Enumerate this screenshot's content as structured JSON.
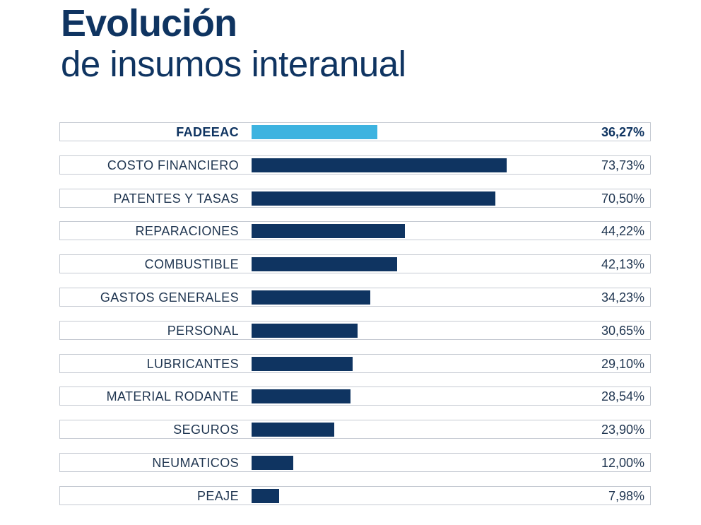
{
  "title": {
    "line1": "Evolución",
    "line2": "de insumos interanual"
  },
  "colors": {
    "highlight_bar": "#3db3e0",
    "bar": "#0f3461",
    "text": "#1f3550"
  },
  "chart_data": {
    "type": "bar",
    "orientation": "horizontal",
    "title": "Evolución de insumos interanual",
    "categories": [
      "FADEEAC",
      "COSTO FINANCIERO",
      "PATENTES Y TASAS",
      "REPARACIONES",
      "COMBUSTIBLE",
      "GASTOS GENERALES",
      "PERSONAL",
      "LUBRICANTES",
      "MATERIAL RODANTE",
      "SEGUROS",
      "NEUMATICOS",
      "PEAJE"
    ],
    "values": [
      36.27,
      73.73,
      70.5,
      44.22,
      42.13,
      34.23,
      30.65,
      29.1,
      28.54,
      23.9,
      12.0,
      7.98
    ],
    "value_labels": [
      "36,27%",
      "73,73%",
      "70,50%",
      "44,22%",
      "42,13%",
      "34,23%",
      "30,65%",
      "29,10%",
      "28,54%",
      "23,90%",
      "12,00%",
      "7,98%"
    ],
    "highlight": "FADEEAC",
    "unit": "%",
    "xlim": [
      0,
      100
    ],
    "grid": false,
    "legend": "none"
  }
}
